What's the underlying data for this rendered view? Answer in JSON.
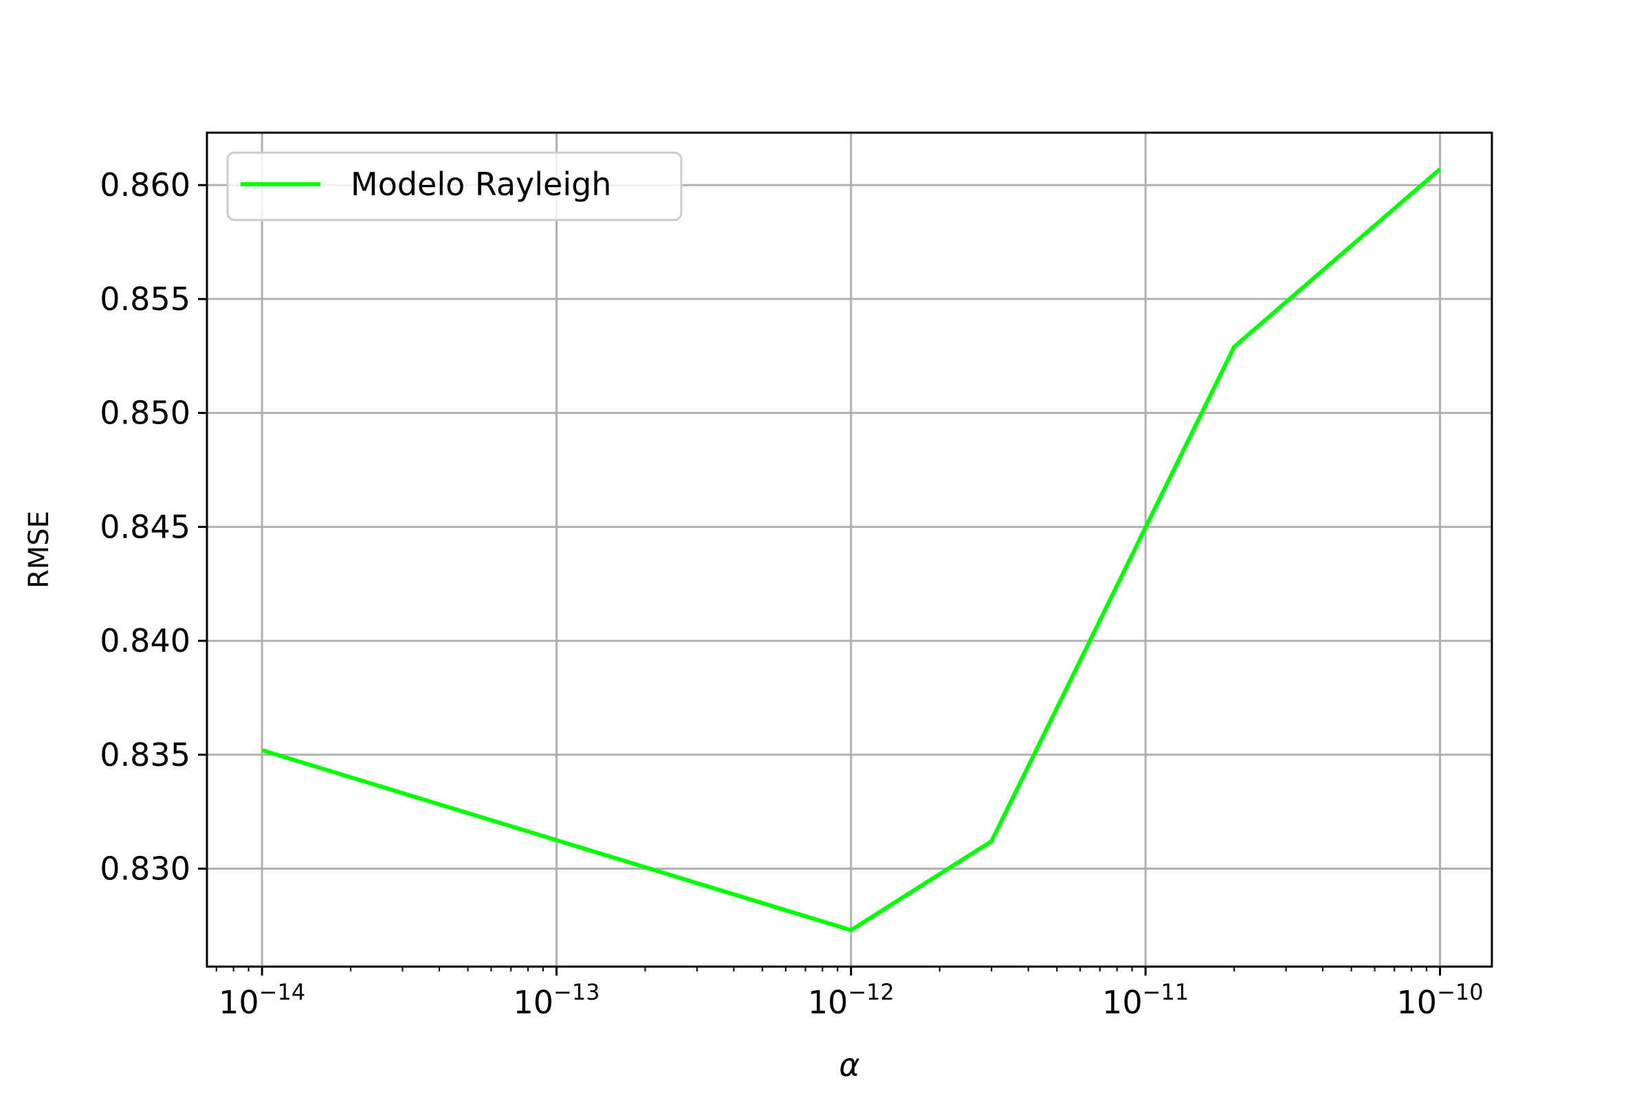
{
  "chart_data": {
    "type": "line",
    "xscale": "log",
    "xlabel": "α",
    "ylabel": "RMSE",
    "xlim": [
      6.5e-15,
      1.5e-10
    ],
    "ylim": [
      0.8257,
      0.8623
    ],
    "grid": true,
    "legend_position": "top-left",
    "x_ticks": [
      {
        "value": 1e-14,
        "label": "10",
        "exp": "−14"
      },
      {
        "value": 1e-13,
        "label": "10",
        "exp": "−13"
      },
      {
        "value": 1e-12,
        "label": "10",
        "exp": "−12"
      },
      {
        "value": 1e-11,
        "label": "10",
        "exp": "−11"
      },
      {
        "value": 1e-10,
        "label": "10",
        "exp": "−10"
      }
    ],
    "y_ticks": [
      {
        "value": 0.83,
        "label": "0.830"
      },
      {
        "value": 0.835,
        "label": "0.835"
      },
      {
        "value": 0.84,
        "label": "0.840"
      },
      {
        "value": 0.845,
        "label": "0.845"
      },
      {
        "value": 0.85,
        "label": "0.850"
      },
      {
        "value": 0.855,
        "label": "0.855"
      },
      {
        "value": 0.86,
        "label": "0.860"
      }
    ],
    "series": [
      {
        "name": "Modelo Rayleigh",
        "color": "#00ff00",
        "x": [
          1e-14,
          1e-12,
          3e-12,
          2e-11,
          1e-10
        ],
        "y": [
          0.8352,
          0.8273,
          0.8312,
          0.8529,
          0.8607
        ]
      }
    ]
  }
}
